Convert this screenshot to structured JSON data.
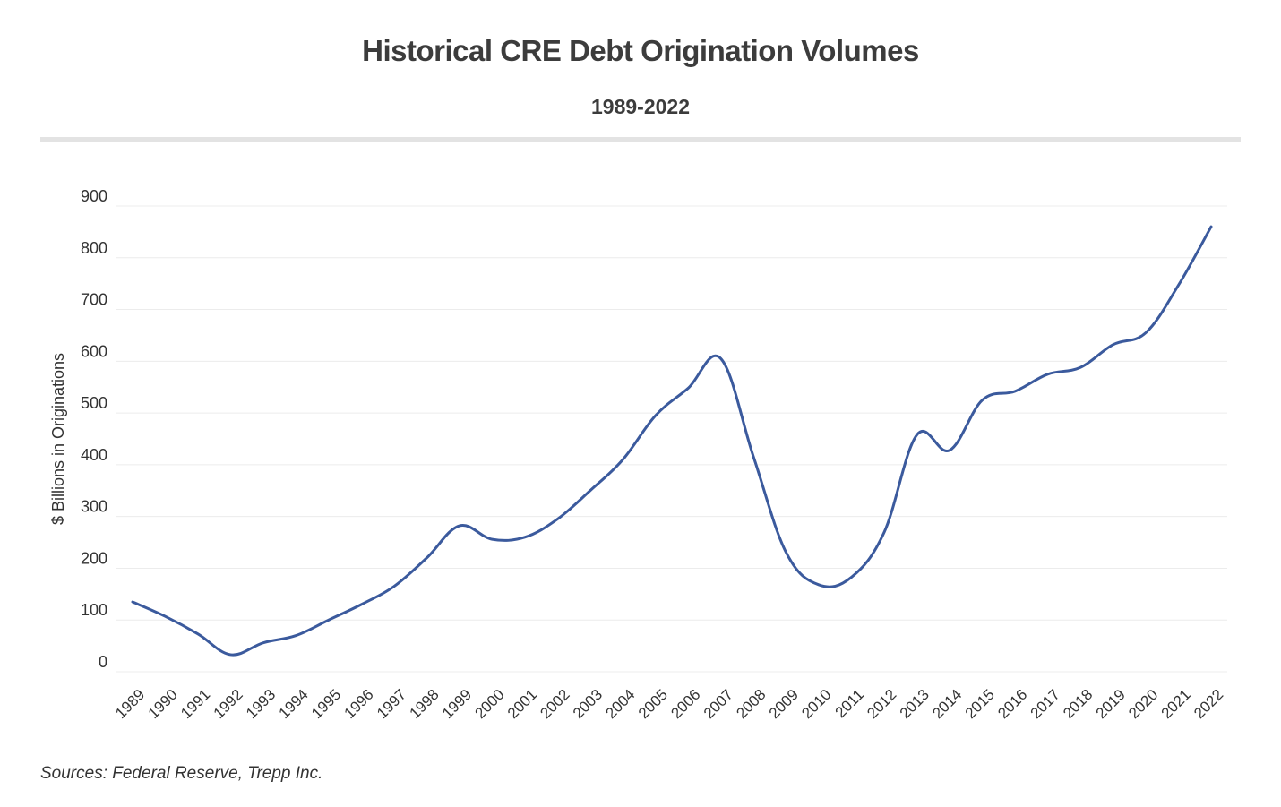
{
  "chart_data": {
    "type": "line",
    "title": "Historical CRE Debt Origination Volumes",
    "subtitle": "1989-2022",
    "xlabel": "",
    "ylabel": "$ Billions in Originations",
    "ylim": [
      0,
      900
    ],
    "yticks": [
      0,
      100,
      200,
      300,
      400,
      500,
      600,
      700,
      800,
      900
    ],
    "grid": true,
    "legend": "none",
    "categories": [
      "1989",
      "1990",
      "1991",
      "1992",
      "1993",
      "1994",
      "1995",
      "1996",
      "1997",
      "1998",
      "1999",
      "2000",
      "2001",
      "2002",
      "2003",
      "2004",
      "2005",
      "2006",
      "2007",
      "2008",
      "2009",
      "2010",
      "2011",
      "2012",
      "2013",
      "2014",
      "2015",
      "2016",
      "2017",
      "2018",
      "2019",
      "2020",
      "2021",
      "2022"
    ],
    "series": [
      {
        "color": "#3b5a9d",
        "values": [
          135,
          107,
          73,
          33,
          56,
          70,
          100,
          130,
          165,
          220,
          282,
          256,
          260,
          295,
          350,
          410,
          495,
          548,
          605,
          415,
          230,
          168,
          183,
          270,
          458,
          428,
          525,
          542,
          575,
          588,
          632,
          655,
          747,
          860
        ]
      }
    ],
    "source": "Sources: Federal Reserve, Trepp Inc."
  }
}
